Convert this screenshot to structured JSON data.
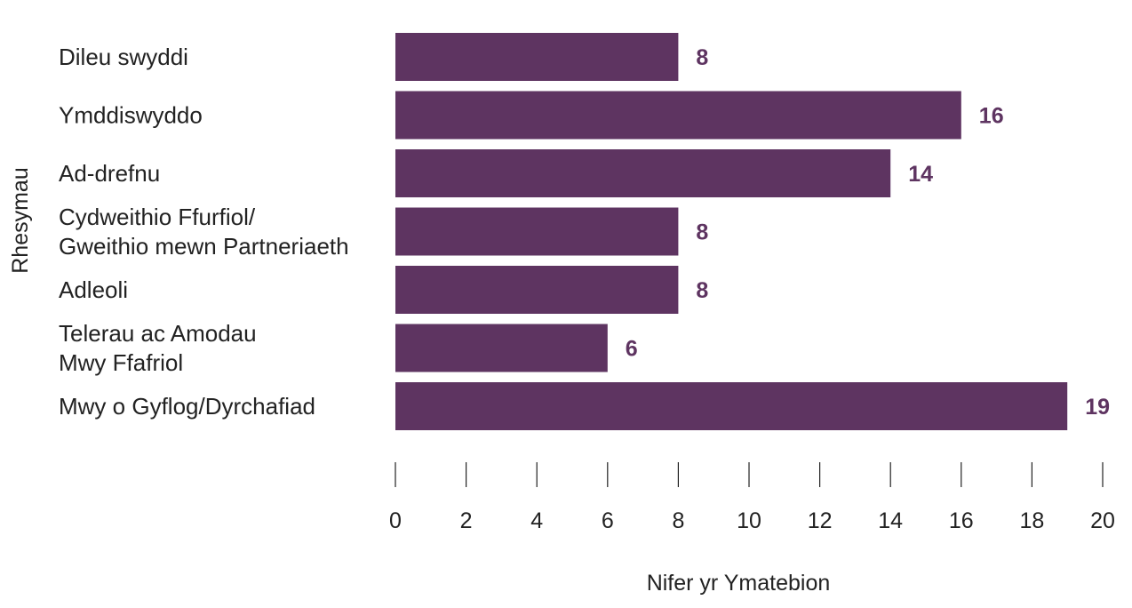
{
  "chart_data": {
    "type": "bar",
    "orientation": "horizontal",
    "title": "",
    "xlabel": "Nifer yr Ymatebion",
    "ylabel": "Rhesymau",
    "categories": [
      [
        "Dileu swyddi"
      ],
      [
        "Ymddiswyddo"
      ],
      [
        "Ad-drefnu"
      ],
      [
        "Cydweithio Ffurfiol/",
        "Gweithio mewn Partneriaeth"
      ],
      [
        "Adleoli"
      ],
      [
        "Telerau ac Amodau",
        "Mwy Ffafriol"
      ],
      [
        "Mwy o Gyflog/Dyrchafiad"
      ]
    ],
    "values": [
      8,
      16,
      14,
      8,
      8,
      6,
      19
    ],
    "xlim": [
      0,
      20
    ],
    "xticks": [
      0,
      2,
      4,
      6,
      8,
      10,
      12,
      14,
      16,
      18,
      20
    ],
    "grid": false,
    "data_labels": true,
    "colors": {
      "bar": "#5e3461",
      "label": "#5e3461"
    }
  }
}
